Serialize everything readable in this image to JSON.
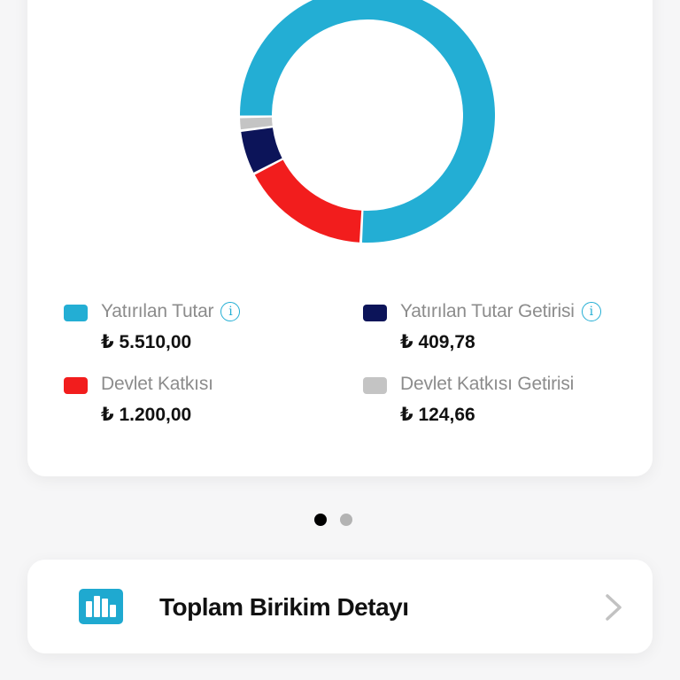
{
  "summary_card": {
    "chart_data": {
      "type": "pie",
      "title": "",
      "categories": [
        "Yatırılan Tutar",
        "Yatırılan Tutar Getirisi",
        "Devlet Katkısı",
        "Devlet Katkısı Getirisi"
      ],
      "values": [
        5510.0,
        409.78,
        1200.0,
        124.66
      ],
      "colors": [
        "#23aed4",
        "#0c1459",
        "#f21d1d",
        "#c4c4c4"
      ],
      "legend_position": "bottom"
    },
    "legend": [
      {
        "label": "Yatırılan Tutar",
        "value": "₺ 5.510,00",
        "color": "#23aed4",
        "has_info": true
      },
      {
        "label": "Yatırılan Tutar Getirisi",
        "value": "₺ 409,78",
        "color": "#0c1459",
        "has_info": true
      },
      {
        "label": "Devlet Katkısı",
        "value": "₺ 1.200,00",
        "color": "#f21d1d",
        "has_info": false
      },
      {
        "label": "Devlet Katkısı Getirisi",
        "value": "₺ 124,66",
        "color": "#c4c4c4",
        "has_info": false
      }
    ],
    "info_glyph": "i"
  },
  "pager": {
    "count": 2,
    "active_index": 0
  },
  "detail_link": {
    "icon": "bar-chart-icon",
    "title": "Toplam Birikim Detayı",
    "chevron": "chevron-right-icon"
  }
}
